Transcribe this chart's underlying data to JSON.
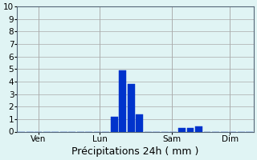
{
  "title": "",
  "xlabel": "Précipitations 24h ( mm )",
  "ylabel": "",
  "ylim": [
    0,
    10
  ],
  "yticks": [
    0,
    1,
    2,
    3,
    4,
    5,
    6,
    7,
    8,
    9,
    10
  ],
  "background_color": "#e0f4f4",
  "bar_color": "#0033cc",
  "bar_edge_color": "#0033cc",
  "grid_color": "#aaaaaa",
  "xlabel_fontsize": 9,
  "tick_fontsize": 7.5,
  "day_labels": [
    "Ven",
    "Lun",
    "Sam",
    "Dim"
  ],
  "n_bars": 28,
  "bar_values": [
    0,
    0,
    0,
    0,
    0,
    0,
    0,
    0,
    0,
    0,
    0,
    1.2,
    4.9,
    3.8,
    1.4,
    0,
    0,
    0,
    0,
    0.3,
    0.3,
    0.4,
    0,
    0,
    0,
    0,
    0,
    0
  ],
  "xlim": [
    0,
    28
  ]
}
